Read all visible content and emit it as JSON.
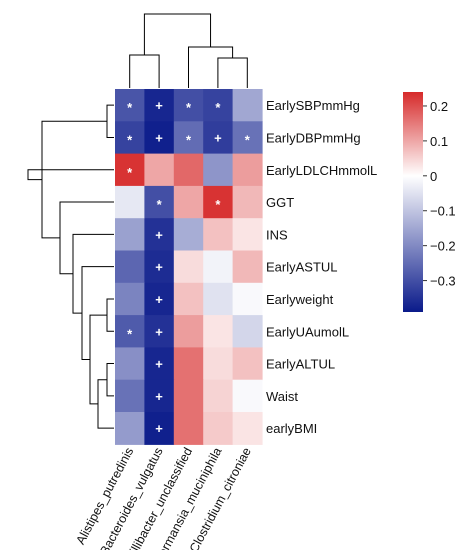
{
  "chart_data": {
    "type": "heatmap",
    "title": "",
    "rows": [
      "EarlySBPmmHg",
      "EarlyDBPmmHg",
      "EarlyLDLCHmmolL",
      "GGT",
      "INS",
      "EarlyASTUL",
      "Earlyweight",
      "EarlyUAumolL",
      "EarlyALTUL",
      "Waist",
      "earlyBMI"
    ],
    "columns": [
      "Alistipes_putredinis",
      "Bacteroides_vulgatus",
      "Oscillibacter_unclassified",
      "Akkermansia_muciniphila",
      "Clostridium_citroniae"
    ],
    "values": [
      [
        -0.29,
        -0.37,
        -0.3,
        -0.32,
        -0.15
      ],
      [
        -0.32,
        -0.38,
        -0.25,
        -0.33,
        -0.24
      ],
      [
        0.23,
        0.1,
        0.17,
        -0.18,
        0.11
      ],
      [
        -0.04,
        -0.3,
        0.1,
        0.23,
        0.08
      ],
      [
        -0.16,
        -0.35,
        -0.14,
        0.07,
        0.03
      ],
      [
        -0.26,
        -0.36,
        0.04,
        -0.02,
        0.08
      ],
      [
        -0.21,
        -0.37,
        0.07,
        -0.05,
        -0.01
      ],
      [
        -0.28,
        -0.35,
        0.11,
        0.03,
        -0.07
      ],
      [
        -0.19,
        -0.37,
        0.16,
        0.04,
        0.07
      ],
      [
        -0.24,
        -0.37,
        0.16,
        0.05,
        -0.01
      ],
      [
        -0.17,
        -0.38,
        0.16,
        0.06,
        0.03
      ]
    ],
    "annotations": [
      [
        "*",
        "+",
        "*",
        "*",
        ""
      ],
      [
        "*",
        "+",
        "*",
        "+",
        "*"
      ],
      [
        "*",
        "",
        "",
        "",
        ""
      ],
      [
        "",
        "*",
        "",
        "*",
        ""
      ],
      [
        "",
        "+",
        "",
        "",
        ""
      ],
      [
        "",
        "+",
        "",
        "",
        ""
      ],
      [
        "",
        "+",
        "",
        "",
        ""
      ],
      [
        "*",
        "+",
        "",
        "",
        ""
      ],
      [
        "",
        "+",
        "",
        "",
        ""
      ],
      [
        "",
        "+",
        "",
        "",
        ""
      ],
      [
        "",
        "+",
        "",
        "",
        ""
      ]
    ],
    "colorbar": {
      "min": -0.39,
      "max": 0.24,
      "ticks": [
        0.2,
        0.1,
        0,
        -0.1,
        -0.2,
        -0.3
      ],
      "tick_labels": [
        "0.2",
        "0.1",
        "0",
        "−0.1",
        "−0.2",
        "−0.3"
      ],
      "colors": {
        "low": "#0a1a8a",
        "mid": "#ffffff",
        "high": "#d62a2a"
      }
    }
  }
}
